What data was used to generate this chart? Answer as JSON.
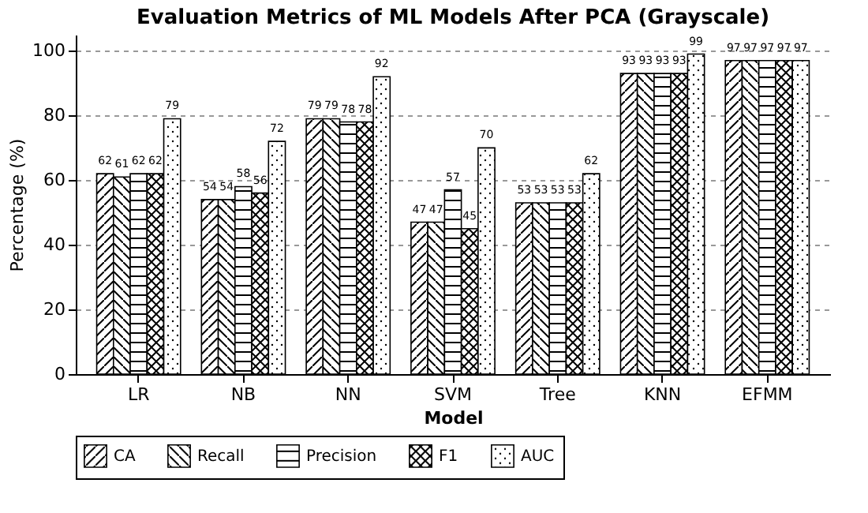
{
  "chart_data": {
    "type": "bar",
    "title": "Evaluation Metrics of ML Models After PCA (Grayscale)",
    "xlabel": "Model",
    "ylabel": "Percentage (%)",
    "categories": [
      "LR",
      "NB",
      "NN",
      "SVM",
      "Tree",
      "KNN",
      "EFMM"
    ],
    "series": [
      {
        "name": "CA",
        "color": "#000000",
        "values": [
          62,
          54,
          79,
          47,
          53,
          93,
          97
        ]
      },
      {
        "name": "Recall",
        "color": "#000000",
        "values": [
          61,
          54,
          79,
          47,
          53,
          93,
          97
        ]
      },
      {
        "name": "Precision",
        "color": "#000000",
        "values": [
          62,
          58,
          78,
          57,
          53,
          93,
          97
        ]
      },
      {
        "name": "F1",
        "color": "#000000",
        "values": [
          62,
          56,
          78,
          45,
          53,
          93,
          97
        ]
      },
      {
        "name": "AUC",
        "color": "#000000",
        "values": [
          79,
          72,
          92,
          70,
          62,
          99,
          97
        ]
      }
    ],
    "ylim": [
      0,
      105
    ],
    "yticks": [
      0,
      20,
      40,
      60,
      80,
      100
    ],
    "grid": "y",
    "legend": "bottom",
    "data_labels": true
  }
}
